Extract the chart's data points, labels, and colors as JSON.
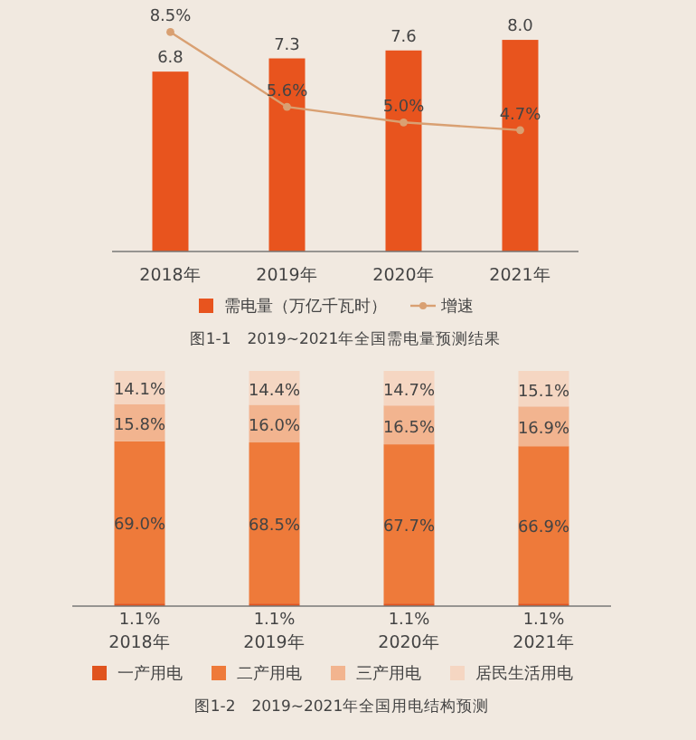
{
  "chart_data": [
    {
      "type": "bar",
      "categories": [
        "2018年",
        "2019年",
        "2020年",
        "2021年"
      ],
      "series": [
        {
          "name": "需电量（万亿千瓦时）",
          "color": "#e8541e",
          "values": [
            6.8,
            7.3,
            7.6,
            8.0
          ],
          "value_labels": [
            "6.8",
            "7.3",
            "7.6",
            "8.0"
          ]
        },
        {
          "name": "增速",
          "type": "line",
          "axis": "y2",
          "color": "#d9a072",
          "marker": "circle",
          "line_style": "solid",
          "values": [
            8.5,
            5.6,
            5.0,
            4.7
          ],
          "value_labels": [
            "8.5%",
            "5.6%",
            "5.0%",
            "4.7%"
          ]
        }
      ],
      "tick_labels": "x",
      "legend": "bottom",
      "annotations": [
        "图1-1　2019~2021年全国需电量预测结果"
      ]
    },
    {
      "type": "bar",
      "stacked": true,
      "categories": [
        "2018年",
        "2019年",
        "2020年",
        "2021年"
      ],
      "series": [
        {
          "name": "一产用电",
          "color": "#e0541f",
          "values": [
            1.1,
            1.1,
            1.1,
            1.1
          ],
          "value_labels": [
            "1.1%",
            "1.1%",
            "1.1%",
            "1.1%"
          ]
        },
        {
          "name": "二产用电",
          "color": "#ee7a3a",
          "values": [
            69.0,
            68.5,
            67.7,
            66.9
          ],
          "value_labels": [
            "69.0%",
            "68.5%",
            "67.7%",
            "66.9%"
          ]
        },
        {
          "name": "三产用电",
          "color": "#f2b48f",
          "values": [
            15.8,
            16.0,
            16.5,
            16.9
          ],
          "value_labels": [
            "15.8%",
            "16.0%",
            "16.5%",
            "16.9%"
          ]
        },
        {
          "name": "居民生活用电",
          "color": "#f5d6c2",
          "values": [
            14.1,
            14.4,
            14.7,
            15.1
          ],
          "value_labels": [
            "14.1%",
            "14.4%",
            "14.7%",
            "15.1%"
          ]
        }
      ],
      "ylim": [
        0,
        100
      ],
      "tick_labels": "x",
      "legend": "bottom",
      "annotations": [
        "图1-2　2019~2021年全国用电结构预测"
      ]
    }
  ]
}
